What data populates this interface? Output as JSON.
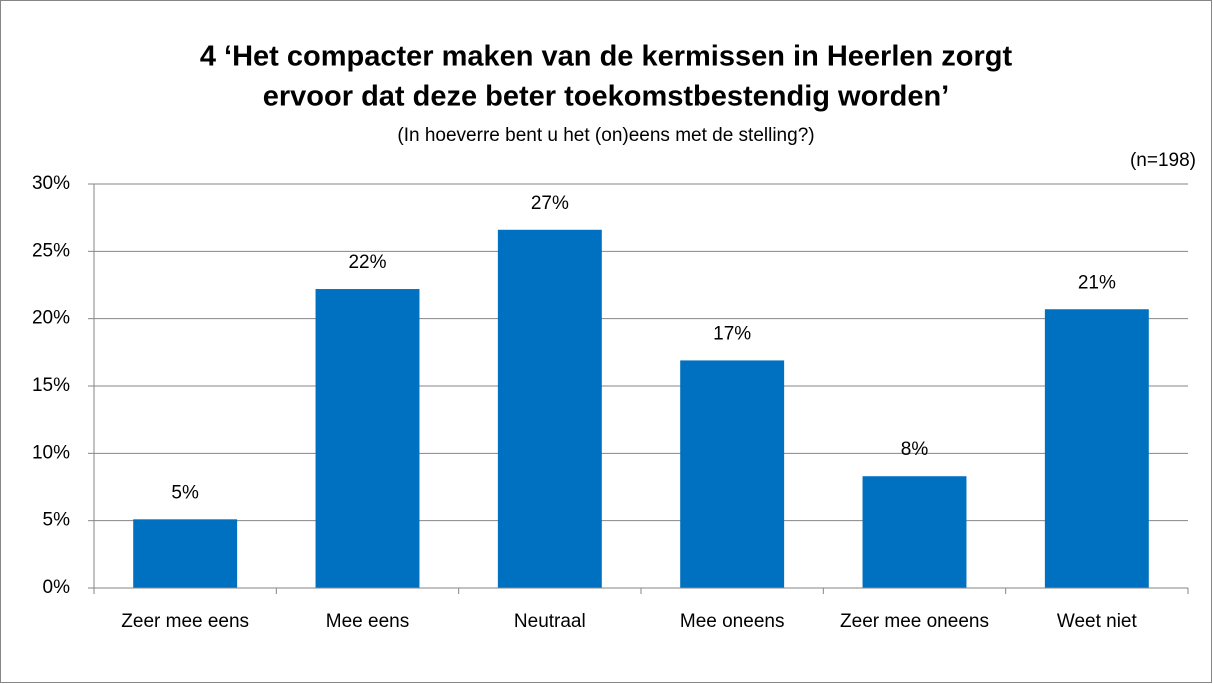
{
  "chart_data": {
    "type": "bar",
    "title_lines": [
      "4 ‘Het compacter maken van de kermissen in Heerlen zorgt",
      "ervoor dat deze beter toekomstbestendig worden’"
    ],
    "subtitle": "(In hoeverre bent u het (on)eens met de stelling?)",
    "note": "(n=198)",
    "categories": [
      "Zeer mee eens",
      "Mee eens",
      "Neutraal",
      "Mee oneens",
      "Zeer mee oneens",
      "Weet niet"
    ],
    "values": [
      5.1,
      22.2,
      26.6,
      16.9,
      8.3,
      20.7
    ],
    "value_labels": [
      "5%",
      "22%",
      "27%",
      "17%",
      "8%",
      "21%"
    ],
    "color": "#0070c0",
    "ylim": [
      0,
      30
    ],
    "yticks": [
      {
        "value": 0,
        "label": "0%"
      },
      {
        "value": 5,
        "label": "5%"
      },
      {
        "value": 10,
        "label": "10%"
      },
      {
        "value": 15,
        "label": "15%"
      },
      {
        "value": 20,
        "label": "20%"
      },
      {
        "value": 25,
        "label": "25%"
      },
      {
        "value": 30,
        "label": "30%"
      }
    ],
    "grid": true
  }
}
